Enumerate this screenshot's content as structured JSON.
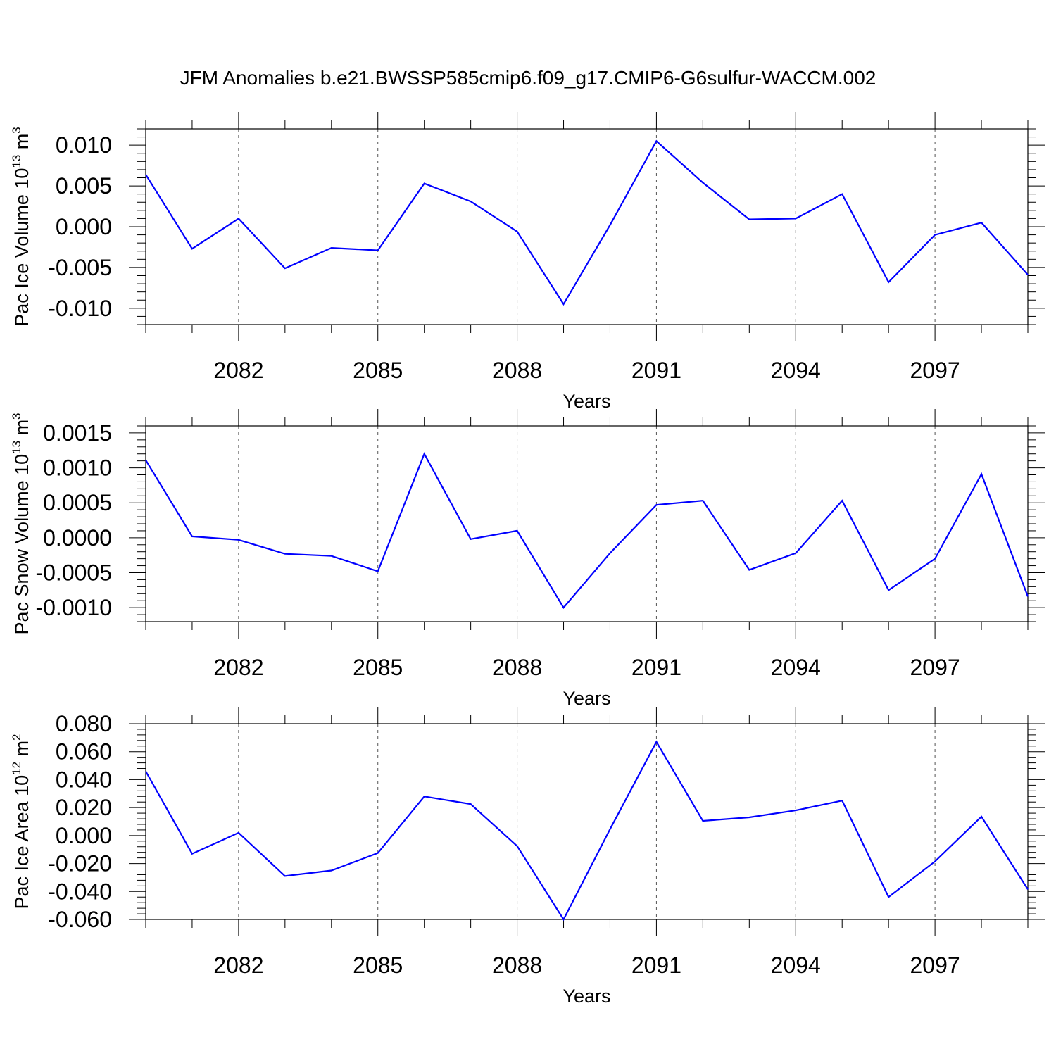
{
  "figure": {
    "title": "JFM Anomalies b.e21.BWSSP585cmip6.f09_g17.CMIP6-G6sulfur-WACCM.002",
    "line_color": "#0000ff"
  },
  "chart_data": [
    {
      "type": "line",
      "xlabel": "Years",
      "ylabel": "Pac Ice Volume 10",
      "ylabel_exp": "13",
      "ylabel_unit": " m",
      "ylabel_unit_exp": "3",
      "xlim": [
        2080,
        2099
      ],
      "ylim": [
        -0.012,
        0.012
      ],
      "xticks": [
        2082,
        2085,
        2088,
        2091,
        2094,
        2097
      ],
      "xtick_labels": [
        "2082",
        "2085",
        "2088",
        "2091",
        "2094",
        "2097"
      ],
      "yticks": [
        -0.01,
        -0.005,
        0.0,
        0.005,
        0.01
      ],
      "ytick_labels": [
        "-0.010",
        "-0.005",
        "0.000",
        "0.005",
        "0.010"
      ],
      "grid": "vertical dashed at major x ticks",
      "series": [
        {
          "x": [
            2080,
            2081,
            2082,
            2083,
            2084,
            2085,
            2086,
            2087,
            2088,
            2089,
            2090,
            2091,
            2092,
            2093,
            2094,
            2095,
            2096,
            2097,
            2098,
            2099
          ],
          "values": [
            0.0064,
            -0.0027,
            0.001,
            -0.0051,
            -0.0026,
            -0.0029,
            0.0053,
            0.0031,
            -0.0006,
            -0.0095,
            0.0002,
            0.0105,
            0.0054,
            0.0009,
            0.001,
            0.004,
            -0.0068,
            -0.001,
            0.0005,
            -0.0059
          ]
        }
      ]
    },
    {
      "type": "line",
      "xlabel": "Years",
      "ylabel": "Pac Snow Volume 10",
      "ylabel_exp": "13",
      "ylabel_unit": " m",
      "ylabel_unit_exp": "3",
      "xlim": [
        2080,
        2099
      ],
      "ylim": [
        -0.0012,
        0.0016
      ],
      "xticks": [
        2082,
        2085,
        2088,
        2091,
        2094,
        2097
      ],
      "xtick_labels": [
        "2082",
        "2085",
        "2088",
        "2091",
        "2094",
        "2097"
      ],
      "yticks": [
        -0.001,
        -0.0005,
        0.0,
        0.0005,
        0.001,
        0.0015
      ],
      "ytick_labels": [
        "-0.0010",
        "-0.0005",
        "0.0000",
        "0.0005",
        "0.0010",
        "0.0015"
      ],
      "grid": "vertical dashed at major x ticks",
      "series": [
        {
          "x": [
            2080,
            2081,
            2082,
            2083,
            2084,
            2085,
            2086,
            2087,
            2088,
            2089,
            2090,
            2091,
            2092,
            2093,
            2094,
            2095,
            2096,
            2097,
            2098,
            2099
          ],
          "values": [
            0.00111,
            2e-05,
            -3e-05,
            -0.00023,
            -0.00026,
            -0.00048,
            0.0012,
            -2e-05,
            0.0001,
            -0.001,
            -0.00022,
            0.00047,
            0.00053,
            -0.00046,
            -0.00022,
            0.00053,
            -0.00075,
            -0.0003,
            0.00091,
            -0.00084
          ]
        }
      ]
    },
    {
      "type": "line",
      "xlabel": "Years",
      "ylabel": "Pac Ice Area 10",
      "ylabel_exp": "12",
      "ylabel_unit": " m",
      "ylabel_unit_exp": "2",
      "xlim": [
        2080,
        2099
      ],
      "ylim": [
        -0.06,
        0.08
      ],
      "xticks": [
        2082,
        2085,
        2088,
        2091,
        2094,
        2097
      ],
      "xtick_labels": [
        "2082",
        "2085",
        "2088",
        "2091",
        "2094",
        "2097"
      ],
      "yticks": [
        -0.06,
        -0.04,
        -0.02,
        0.0,
        0.02,
        0.04,
        0.06,
        0.08
      ],
      "ytick_labels": [
        "-0.060",
        "-0.040",
        "-0.020",
        "0.000",
        "0.020",
        "0.040",
        "0.060",
        "0.080"
      ],
      "grid": "vertical dashed at major x ticks",
      "series": [
        {
          "x": [
            2080,
            2081,
            2082,
            2083,
            2084,
            2085,
            2086,
            2087,
            2088,
            2089,
            2090,
            2091,
            2092,
            2093,
            2094,
            2095,
            2096,
            2097,
            2098,
            2099
          ],
          "values": [
            0.046,
            -0.013,
            0.002,
            -0.029,
            -0.025,
            -0.0125,
            0.028,
            0.0225,
            -0.0075,
            -0.06,
            0.0045,
            0.067,
            0.0105,
            0.013,
            0.018,
            0.025,
            -0.044,
            -0.0185,
            0.0135,
            -0.0385
          ]
        }
      ]
    }
  ]
}
